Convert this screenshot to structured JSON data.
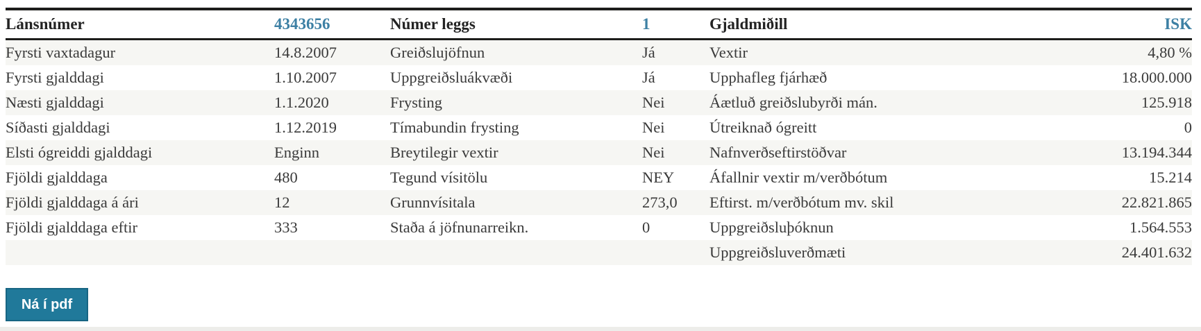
{
  "colors": {
    "accent_teal_text": "#3d80a4",
    "button_background": "#20799a",
    "button_border": "#176583",
    "row_stripe": "#f6f6f3",
    "header_rule": "#1d1d1b",
    "body_text": "#3a3a3a"
  },
  "header": {
    "col1_label": "Lánsnúmer",
    "col1_value": "4343656",
    "col2_label": "Númer leggs",
    "col2_value": "1",
    "col3_label": "Gjaldmiðill",
    "col3_value": "ISK"
  },
  "rows": [
    {
      "col1_label": "Fyrsti vaxtadagur",
      "col1_value": "14.8.2007",
      "col2_label": "Greiðslujöfnun",
      "col2_value": "Já",
      "col3_label": "Vextir",
      "col3_value": "4,80 %"
    },
    {
      "col1_label": "Fyrsti gjalddagi",
      "col1_value": "1.10.2007",
      "col2_label": "Uppgreiðsluákvæði",
      "col2_value": "Já",
      "col3_label": "Upphafleg fjárhæð",
      "col3_value": "18.000.000"
    },
    {
      "col1_label": "Næsti gjalddagi",
      "col1_value": "1.1.2020",
      "col2_label": "Frysting",
      "col2_value": "Nei",
      "col3_label": "Áætluð greiðslubyrði mán.",
      "col3_value": "125.918"
    },
    {
      "col1_label": "Síðasti gjalddagi",
      "col1_value": "1.12.2019",
      "col2_label": "Tímabundin frysting",
      "col2_value": "Nei",
      "col3_label": "Útreiknað ógreitt",
      "col3_value": "0"
    },
    {
      "col1_label": "Elsti ógreiddi gjalddagi",
      "col1_value": "Enginn",
      "col2_label": "Breytilegir vextir",
      "col2_value": "Nei",
      "col3_label": "Nafnverðseftirstöðvar",
      "col3_value": "13.194.344"
    },
    {
      "col1_label": "Fjöldi gjalddaga",
      "col1_value": "480",
      "col2_label": "Tegund vísitölu",
      "col2_value": "NEY",
      "col3_label": "Áfallnir vextir m/verðbótum",
      "col3_value": "15.214"
    },
    {
      "col1_label": "Fjöldi gjalddaga á ári",
      "col1_value": "12",
      "col2_label": "Grunnvísitala",
      "col2_value": "273,0",
      "col3_label": "Eftirst. m/verðbótum mv. skil",
      "col3_value": "22.821.865"
    },
    {
      "col1_label": "Fjöldi gjalddaga eftir",
      "col1_value": "333",
      "col2_label": "Staða á jöfnunarreikn.",
      "col2_value": "0",
      "col3_label": "Uppgreiðsluþóknun",
      "col3_value": "1.564.553"
    },
    {
      "col1_label": "",
      "col1_value": "",
      "col2_label": "",
      "col2_value": "",
      "col3_label": "Uppgreiðsluverðmæti",
      "col3_value": "24.401.632"
    }
  ],
  "button": {
    "label": "Ná í pdf"
  }
}
